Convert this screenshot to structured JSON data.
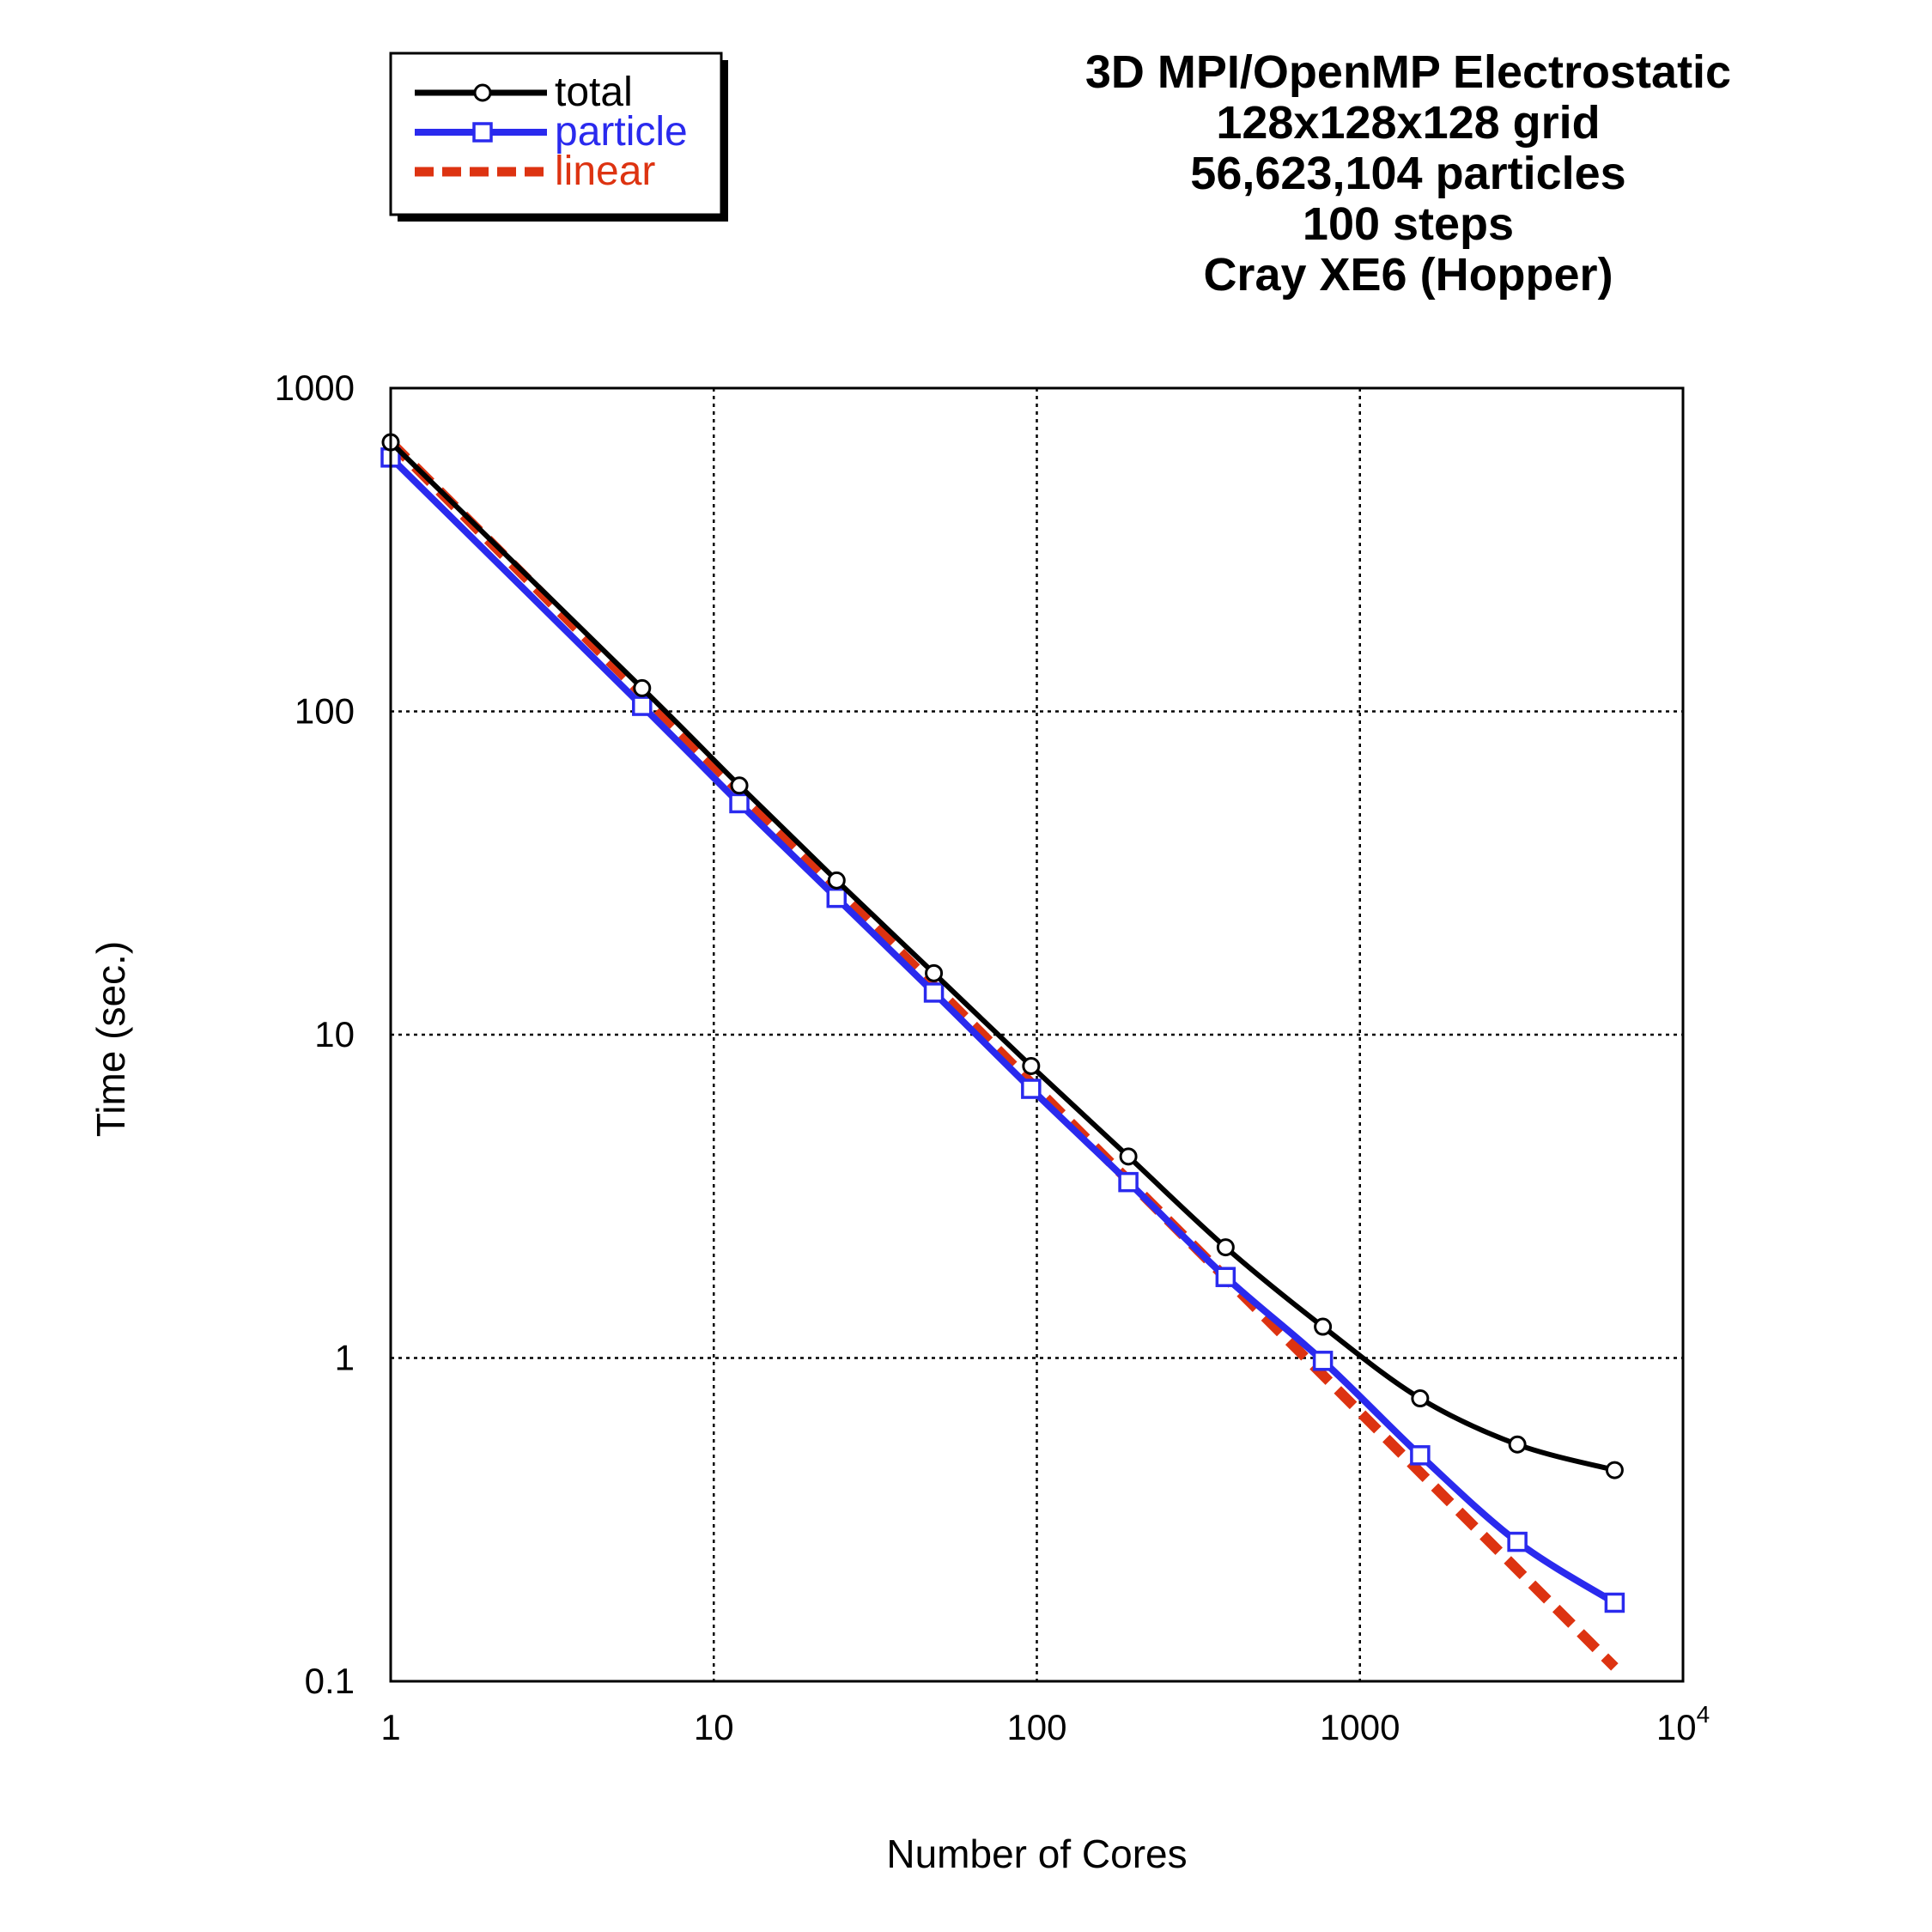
{
  "chart_data": {
    "type": "line",
    "title_lines": [
      "3D MPI/OpenMP Electrostatic",
      "128x128x128 grid",
      "56,623,104 particles",
      "100 steps",
      "Cray XE6 (Hopper)"
    ],
    "xlabel": "Number of Cores",
    "ylabel": "Time (sec.)",
    "x_scale": "log",
    "y_scale": "log",
    "xlim": [
      1,
      10000
    ],
    "ylim": [
      0.1,
      1000
    ],
    "grid": true,
    "legend_position": "top-left",
    "x_ticks": [
      {
        "value": 1,
        "label": "1"
      },
      {
        "value": 10,
        "label": "10"
      },
      {
        "value": 100,
        "label": "100"
      },
      {
        "value": 1000,
        "label": "1000"
      },
      {
        "value": 10000,
        "label": "10",
        "exponent": "4"
      }
    ],
    "y_ticks": [
      {
        "value": 0.1,
        "label": "0.1"
      },
      {
        "value": 1,
        "label": "1"
      },
      {
        "value": 10,
        "label": "10"
      },
      {
        "value": 100,
        "label": "100"
      },
      {
        "value": 1000,
        "label": "1000"
      }
    ],
    "series": [
      {
        "name": "total",
        "color": "#000000",
        "marker": "circle",
        "dashed": false,
        "x": [
          1,
          6,
          12,
          24,
          48,
          96,
          192,
          384,
          768,
          1536,
          3072,
          6144
        ],
        "y": [
          680,
          118,
          59,
          30,
          15.5,
          8.0,
          4.2,
          2.2,
          1.25,
          0.75,
          0.54,
          0.45
        ]
      },
      {
        "name": "particle",
        "color": "#2a2aee",
        "marker": "square",
        "dashed": false,
        "x": [
          1,
          6,
          12,
          24,
          48,
          96,
          192,
          384,
          768,
          1536,
          3072,
          6144
        ],
        "y": [
          610,
          104,
          52,
          26.5,
          13.5,
          6.8,
          3.5,
          1.78,
          0.98,
          0.5,
          0.27,
          0.175
        ]
      },
      {
        "name": "linear",
        "color": "#dd3311",
        "marker": "none",
        "dashed": true,
        "x": [
          1,
          6144
        ],
        "y": [
          680,
          0.1107
        ]
      }
    ]
  }
}
